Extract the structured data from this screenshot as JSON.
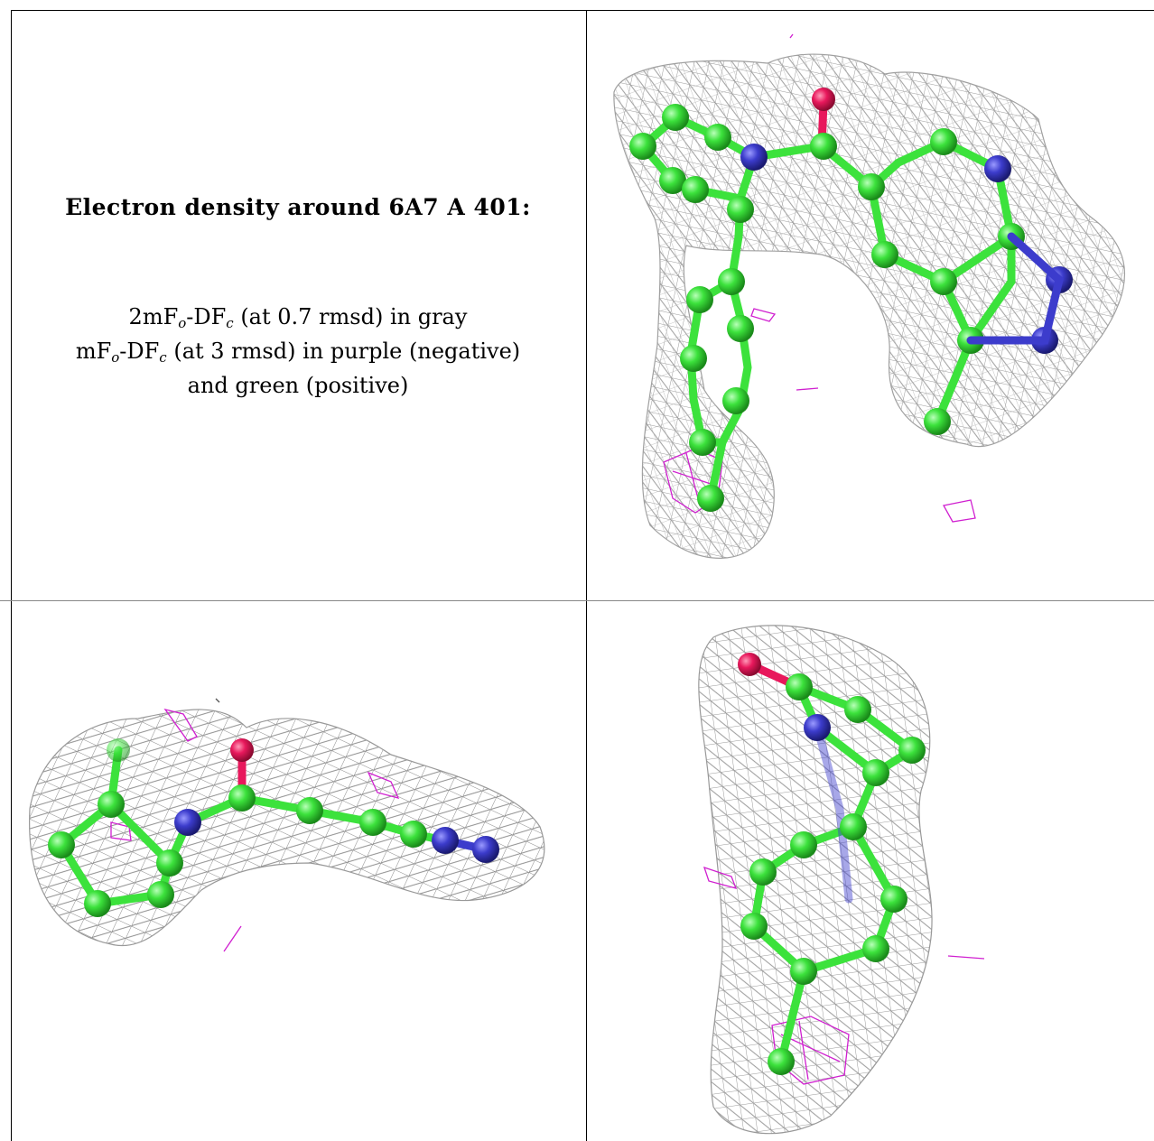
{
  "caption": {
    "title": "Electron density around 6A7 A 401:",
    "line1_prefix": "2mF",
    "line1_sub1": "o",
    "line1_mid": "-DF",
    "line1_sub2": "c",
    "line1_suffix": " (at 0.7 rmsd) in gray",
    "line2_prefix": "mF",
    "line2_sub1": "o",
    "line2_mid": "-DF",
    "line2_sub2": "c",
    "line2_suffix": " (at 3 rmsd) in purple (negative)",
    "line3": "and green (positive)"
  },
  "colors": {
    "mesh": "#9a9a9a",
    "carbon": "#3ce23c",
    "nitrogen": "#3c3ccc",
    "oxygen": "#e8185c",
    "negative_density": "#d020d0"
  },
  "panels": [
    "view-top-right",
    "view-bottom-left",
    "view-bottom-right"
  ]
}
